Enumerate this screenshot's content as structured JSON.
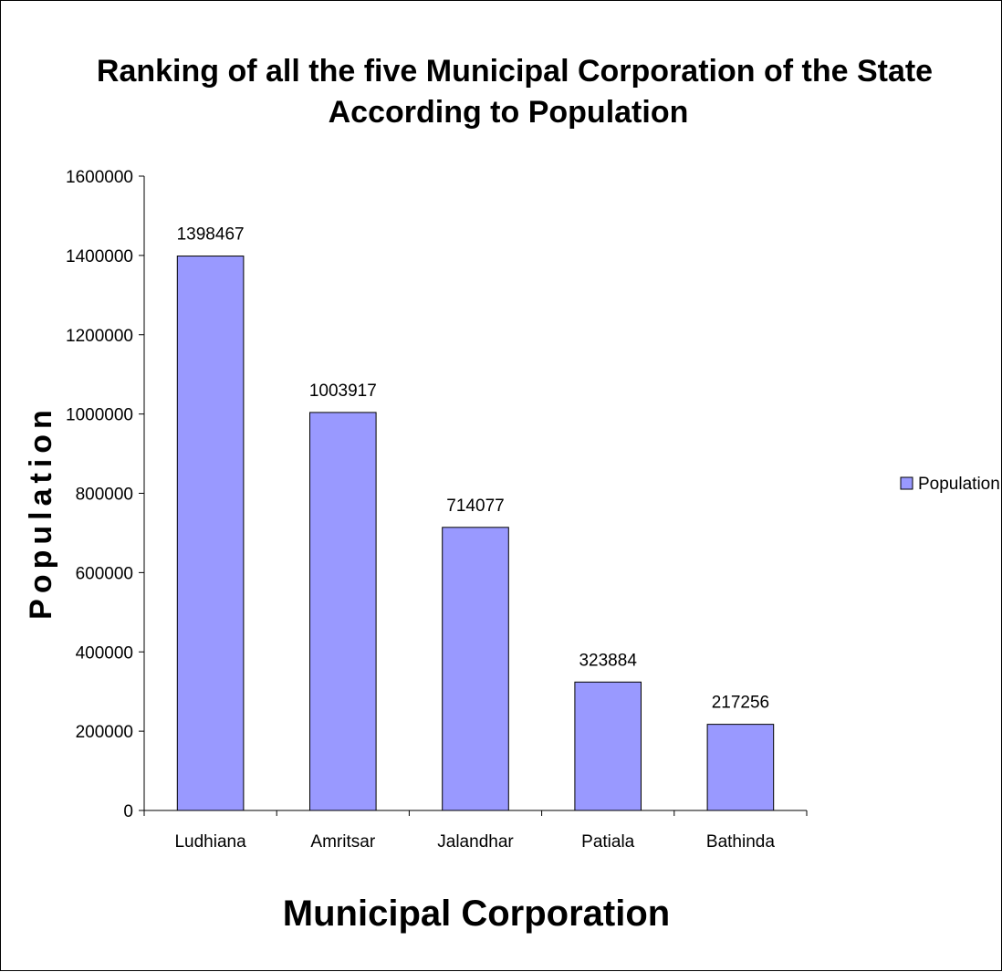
{
  "chart_data": {
    "type": "bar",
    "title": "Ranking of all the five Municipal Corporation of the State",
    "subtitle": "According to Population",
    "xlabel": "Municipal Corporation",
    "ylabel": "Population",
    "categories": [
      "Ludhiana",
      "Amritsar",
      "Jalandhar",
      "Patiala",
      "Bathinda"
    ],
    "series": [
      {
        "name": "Population",
        "values": [
          1398467,
          1003917,
          714077,
          323884,
          217256
        ],
        "color": "#9999ff"
      }
    ],
    "data_labels": [
      "1398467",
      "1003917",
      "714077",
      "323884",
      "217256"
    ],
    "ylim": [
      0,
      1600000
    ],
    "yticks": [
      0,
      200000,
      400000,
      600000,
      800000,
      1000000,
      1200000,
      1400000,
      1600000
    ],
    "ytick_labels": [
      "0",
      "200000",
      "400000",
      "600000",
      "800000",
      "1000000",
      "1200000",
      "1400000",
      "1600000"
    ],
    "grid": false,
    "legend_position": "right"
  }
}
